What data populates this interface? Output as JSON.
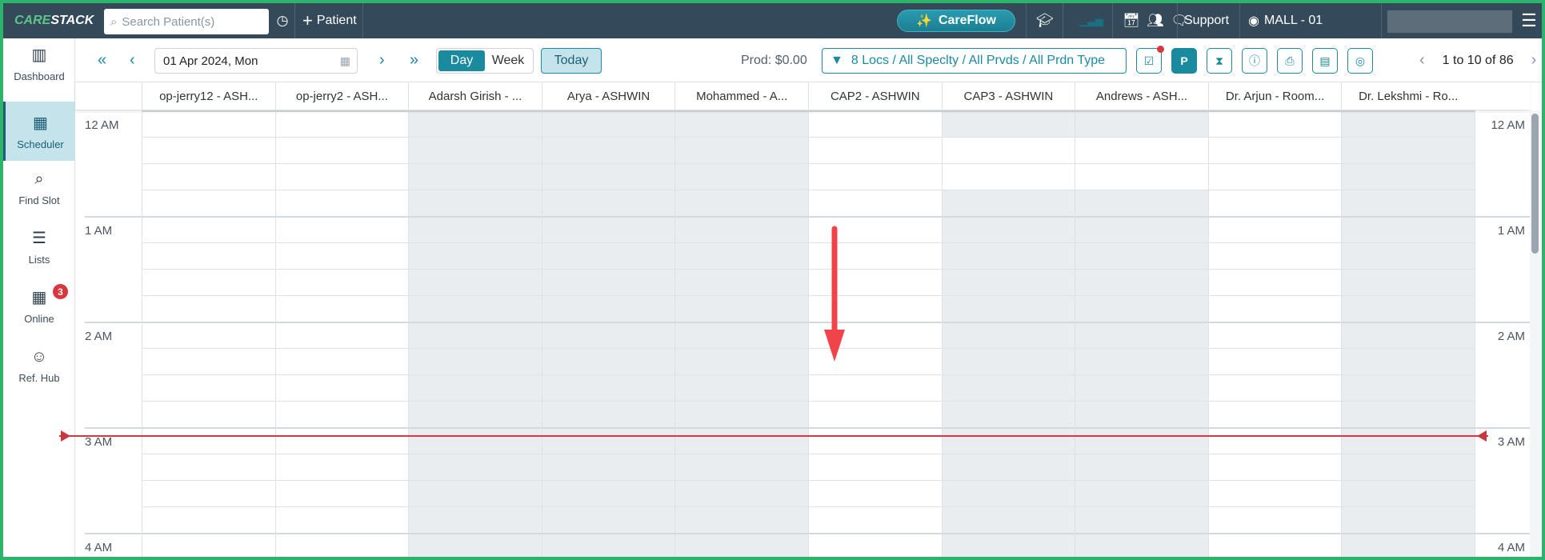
{
  "topbar": {
    "logo": "CARESTACK",
    "search_placeholder": "Search Patient(s)",
    "add_patient": "Patient",
    "careflow": "CareFlow",
    "support": "Support",
    "location": "MALL - 01"
  },
  "sidebar": {
    "items": [
      {
        "label": "Dashboard",
        "icon": "dashboard-icon"
      },
      {
        "label": "Scheduler",
        "icon": "calendar-icon",
        "active": true
      },
      {
        "label": "Find Slot",
        "icon": "search-icon"
      },
      {
        "label": "Lists",
        "icon": "list-edit-icon"
      },
      {
        "label": "Online",
        "icon": "calendar-plus-icon",
        "badge": "3"
      },
      {
        "label": "Ref. Hub",
        "icon": "referral-icon"
      }
    ]
  },
  "toolbar": {
    "date": "01 Apr 2024, Mon",
    "view_day": "Day",
    "view_week": "Week",
    "active_view": "Day",
    "today": "Today",
    "prod": "Prod: $0.00",
    "filter": "8 Locs / All Speclty / All Prvds / All Prdn Type",
    "p_button": "P",
    "pager": "1 to 10 of 86"
  },
  "schedule": {
    "hours": [
      "12 AM",
      "1 AM",
      "2 AM",
      "3 AM",
      "4 AM"
    ],
    "columns": [
      {
        "name": "op-jerry12 - ASH...",
        "shading": "none"
      },
      {
        "name": "op-jerry2 - ASH...",
        "shading": "none"
      },
      {
        "name": "Adarsh Girish - ...",
        "shading": "all"
      },
      {
        "name": "Arya - ASHWIN",
        "shading": "all"
      },
      {
        "name": "Mohammed - A...",
        "shading": "all"
      },
      {
        "name": "CAP2 - ASHWIN",
        "shading": "none"
      },
      {
        "name": "CAP3 - ASHWIN",
        "shading": "partial"
      },
      {
        "name": "Andrews - ASH...",
        "shading": "partial"
      },
      {
        "name": "Dr. Arjun - Room...",
        "shading": "none"
      },
      {
        "name": "Dr. Lekshmi - Ro...",
        "shading": "all"
      }
    ],
    "partial_open_slots": [
      "12:15 AM",
      "12:30 AM"
    ],
    "current_time_indicator": "3 AM"
  },
  "colors": {
    "accent": "#1a8a9f",
    "topbar": "#34495a",
    "now_line": "#d9363e",
    "annotation_arrow": "#f0444a",
    "frame": "#2db46b"
  }
}
